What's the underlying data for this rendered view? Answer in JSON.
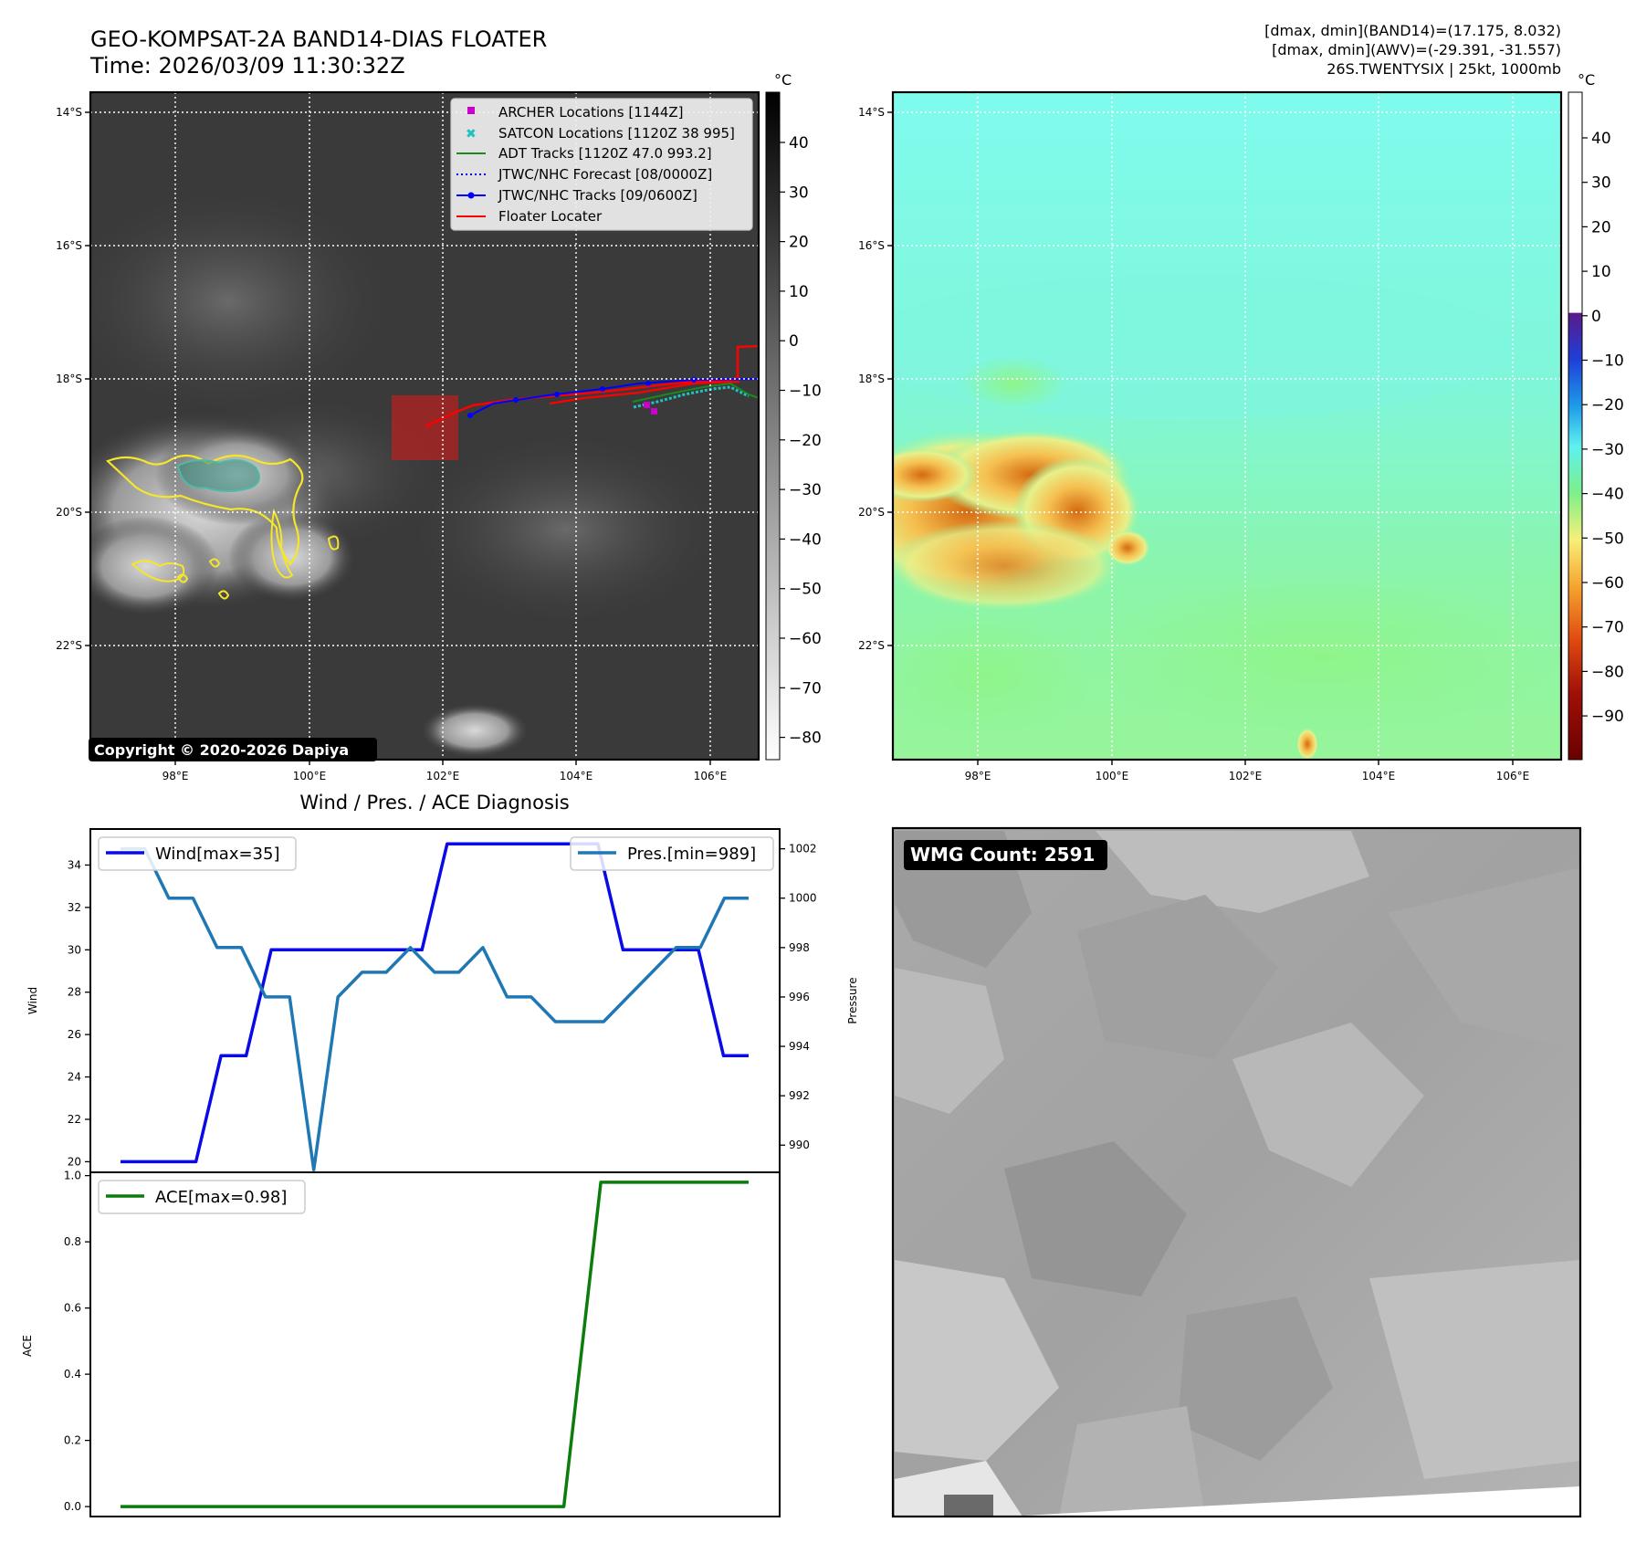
{
  "header": {
    "title_line1": "GEO-KOMPSAT-2A BAND14-DIAS FLOATER",
    "title_line2": "Time: 2026/03/09 11:30:32Z",
    "info_line1": "[dmax, dmin](BAND14)=(17.175, 8.032)",
    "info_line2": "[dmax, dmin](AWV)=(-29.391, -31.557)",
    "info_line3": "26S.TWENTYSIX | 25kt, 1000mb"
  },
  "maps": {
    "lat_labels": [
      "14°S",
      "16°S",
      "18°S",
      "20°S",
      "22°S"
    ],
    "lon_labels": [
      "98°E",
      "100°E",
      "102°E",
      "104°E",
      "106°E"
    ],
    "copyright": "Copyright © 2020-2026 Dapiya",
    "colorbar_unit": "°C",
    "ir_colorbar_ticks": [
      "40",
      "30",
      "20",
      "10",
      "0",
      "−10",
      "−20",
      "−30",
      "−40",
      "−50",
      "−60",
      "−70",
      "−80"
    ],
    "awv_colorbar_ticks": [
      "40",
      "30",
      "20",
      "10",
      "0",
      "−10",
      "−20",
      "−30",
      "−40",
      "−50",
      "−60",
      "−70",
      "−80",
      "−90"
    ],
    "legend": [
      {
        "label": "ARCHER Locations [1144Z]",
        "color": "#cc00cc",
        "marker": "square"
      },
      {
        "label": "SATCON Locations [1120Z 38 995]",
        "color": "#1ec2c2",
        "marker": "x"
      },
      {
        "label": "ADT Tracks [1120Z 47.0 993.2]",
        "color": "#1a8a1a",
        "marker": "line"
      },
      {
        "label": "JTWC/NHC Forecast [08/0000Z]",
        "color": "#0000ff",
        "marker": "dotted"
      },
      {
        "label": "JTWC/NHC Tracks [09/0600Z]",
        "color": "#0000ff",
        "marker": "line-dot"
      },
      {
        "label": "Floater Locater",
        "color": "#ff0000",
        "marker": "line"
      }
    ]
  },
  "diagnosis": {
    "title": "Wind / Pres. / ACE Diagnosis",
    "wind_legend": "Wind[max=35]",
    "pres_legend": "Pres.[min=989]",
    "ace_legend": "ACE[max=0.98]",
    "wind_axis_label": "Wind",
    "pres_axis_label": "Pressure",
    "ace_axis_label": "ACE"
  },
  "wmg": {
    "label": "WMG Count: 2591"
  },
  "colors": {
    "wind": "#0a0ae6",
    "pressure": "#1f77b4",
    "ace": "#0a7d0a",
    "ir_background": "#3a3a3a",
    "awv_background": "#7ff8e6",
    "wmg_background": "#aaaaaa"
  },
  "chart_data": [
    {
      "type": "line",
      "title": "Wind / Pres. / ACE Diagnosis",
      "ylabel": "Wind",
      "ylim": [
        19.5,
        35.7
      ],
      "yticks": [
        20,
        22,
        24,
        26,
        28,
        30,
        32,
        34
      ],
      "series": [
        {
          "name": "Wind[max=35]",
          "axis": "left",
          "values": [
            20,
            20,
            20,
            20,
            25,
            25,
            30,
            30,
            30,
            30,
            30,
            30,
            30,
            35,
            35,
            35,
            35,
            35,
            35,
            35,
            30,
            30,
            30,
            30,
            25,
            25
          ]
        }
      ]
    },
    {
      "type": "line",
      "ylabel": "Pressure",
      "ylim": [
        988.9,
        1002.8
      ],
      "yticks": [
        990,
        992,
        994,
        996,
        998,
        1000,
        1002
      ],
      "series": [
        {
          "name": "Pres.[min=989]",
          "axis": "right",
          "values": [
            1002,
            1002,
            1000,
            1000,
            998,
            998,
            996,
            996,
            989,
            996,
            997,
            997,
            998,
            997,
            997,
            998,
            996,
            996,
            995,
            995,
            995,
            996,
            997,
            998,
            998,
            1000,
            1000
          ]
        }
      ]
    },
    {
      "type": "line",
      "ylabel": "ACE",
      "ylim": [
        -0.03,
        1.01
      ],
      "yticks": [
        0.0,
        0.2,
        0.4,
        0.6,
        0.8,
        1.0
      ],
      "series": [
        {
          "name": "ACE[max=0.98]",
          "values": [
            0,
            0,
            0,
            0,
            0,
            0,
            0,
            0,
            0,
            0,
            0,
            0,
            0,
            0.98,
            0.98,
            0.98,
            0.98,
            0.98
          ]
        }
      ]
    }
  ]
}
